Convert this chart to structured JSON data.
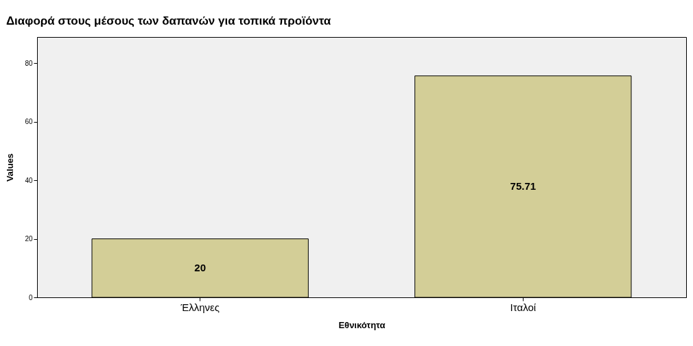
{
  "chart_data": {
    "type": "bar",
    "title": "Διαφορά στους μέσους των δαπανών για τοπικά προϊόντα",
    "xlabel": "Εθνικότητα",
    "ylabel": "Values",
    "categories": [
      "Έλληνες",
      "Ιταλοί"
    ],
    "values": [
      20,
      75.71
    ],
    "color": "#d3ce97",
    "ylim": [
      0,
      89
    ],
    "yticks": [
      0,
      20,
      40,
      60,
      80
    ],
    "data_labels": true,
    "grid": false
  }
}
